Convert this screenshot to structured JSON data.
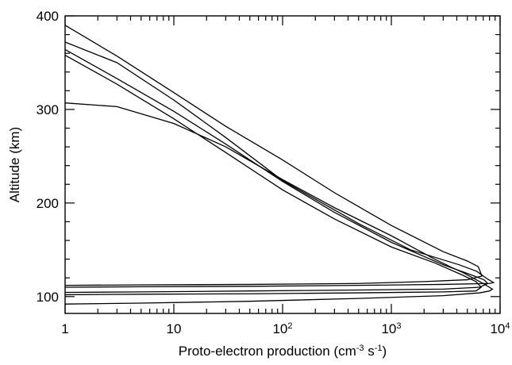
{
  "chart_data": {
    "type": "line",
    "title": "",
    "xlabel_parts": {
      "prefix": "Proto-electron production (cm",
      "exp1": "-3",
      "middle": " s",
      "exp2": "-1",
      "suffix": ")"
    },
    "ylabel": "Altitude (km)",
    "x_scale": "log",
    "xlim": [
      1,
      10000
    ],
    "ylim": [
      82,
      400
    ],
    "grid": false,
    "legend": "none",
    "x_ticks": [
      {
        "value": 1,
        "base": "1",
        "exp": ""
      },
      {
        "value": 10,
        "base": "10",
        "exp": ""
      },
      {
        "value": 100,
        "base": "10",
        "exp": "2"
      },
      {
        "value": 1000,
        "base": "10",
        "exp": "3"
      },
      {
        "value": 10000,
        "base": "10",
        "exp": "4"
      }
    ],
    "y_ticks": [
      100,
      200,
      300,
      400
    ],
    "series": [
      {
        "points": [
          [
            1,
            92
          ],
          [
            5,
            93
          ],
          [
            50,
            95
          ],
          [
            500,
            98
          ],
          [
            3000,
            101
          ],
          [
            6500,
            104
          ],
          [
            8000,
            106
          ],
          [
            8500,
            108
          ],
          [
            7000,
            114
          ],
          [
            5600,
            120
          ],
          [
            4500,
            126
          ],
          [
            3600,
            131
          ],
          [
            2500,
            140
          ],
          [
            1000,
            165
          ],
          [
            300,
            195
          ],
          [
            100,
            225
          ],
          [
            30,
            260
          ],
          [
            10,
            285
          ],
          [
            3,
            303
          ],
          [
            1,
            307
          ]
        ]
      },
      {
        "points": [
          [
            1,
            102
          ],
          [
            5,
            102.5
          ],
          [
            50,
            103
          ],
          [
            500,
            104
          ],
          [
            3000,
            105
          ],
          [
            6000,
            106
          ],
          [
            6700,
            110
          ],
          [
            6000,
            116
          ],
          [
            4500,
            123
          ],
          [
            2500,
            136
          ],
          [
            1000,
            153
          ],
          [
            300,
            183
          ],
          [
            100,
            214
          ],
          [
            30,
            254
          ],
          [
            10,
            290
          ],
          [
            3,
            327
          ],
          [
            1,
            358
          ]
        ]
      },
      {
        "points": [
          [
            1,
            104.5
          ],
          [
            5,
            105
          ],
          [
            50,
            106
          ],
          [
            500,
            107
          ],
          [
            3000,
            108
          ],
          [
            6500,
            110
          ],
          [
            7700,
            114
          ],
          [
            7100,
            118
          ],
          [
            5200,
            124
          ],
          [
            3000,
            134
          ],
          [
            1000,
            158
          ],
          [
            300,
            190
          ],
          [
            100,
            223
          ],
          [
            30,
            263
          ],
          [
            10,
            298
          ],
          [
            3,
            333
          ],
          [
            1,
            364
          ]
        ]
      },
      {
        "points": [
          [
            1,
            110
          ],
          [
            5,
            110.5
          ],
          [
            50,
            111
          ],
          [
            500,
            112
          ],
          [
            3000,
            113
          ],
          [
            8000,
            114
          ],
          [
            8700,
            115
          ],
          [
            7600,
            119
          ],
          [
            6100,
            127
          ],
          [
            4200,
            134
          ],
          [
            1500,
            150
          ],
          [
            500,
            178
          ],
          [
            100,
            224
          ],
          [
            30,
            270
          ],
          [
            10,
            310
          ],
          [
            3,
            350
          ],
          [
            1,
            372
          ]
        ]
      },
      {
        "points": [
          [
            1,
            112
          ],
          [
            5,
            112.5
          ],
          [
            50,
            113
          ],
          [
            500,
            114
          ],
          [
            2000,
            116
          ],
          [
            5000,
            118
          ],
          [
            6800,
            122
          ],
          [
            6300,
            132
          ],
          [
            5000,
            138
          ],
          [
            3000,
            148
          ],
          [
            1000,
            176
          ],
          [
            300,
            211
          ],
          [
            100,
            246
          ],
          [
            30,
            282
          ],
          [
            10,
            318
          ],
          [
            3,
            357
          ],
          [
            1,
            390
          ]
        ]
      }
    ]
  }
}
